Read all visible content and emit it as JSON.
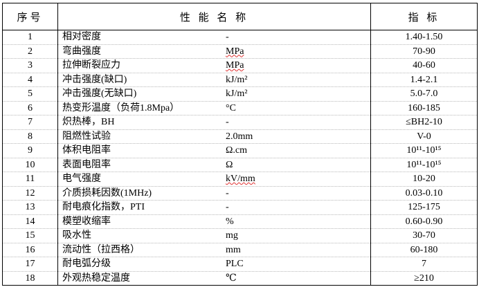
{
  "header": {
    "index": "序号",
    "name": "性 能 名 称",
    "spec": "指 标"
  },
  "rows": [
    {
      "no": "1",
      "name": "相对密度",
      "unit": "-",
      "value": "1.40-1.50"
    },
    {
      "no": "2",
      "name": "弯曲强度",
      "unit": "MPa",
      "value": "70-90",
      "spell_flag": true
    },
    {
      "no": "3",
      "name": "拉伸断裂应力",
      "unit": "MPa",
      "value": "40-60",
      "spell_flag": true
    },
    {
      "no": "4",
      "name": "冲击强度(缺口)",
      "unit": "kJ/m²",
      "value": "1.4-2.1"
    },
    {
      "no": "5",
      "name": "冲击强度(无缺口)",
      "unit": "kJ/m²",
      "value": "5.0-7.0"
    },
    {
      "no": "6",
      "name": "热变形温度（负荷1.8Mpa）",
      "unit": "°C",
      "value": "160-185"
    },
    {
      "no": "7",
      "name": "炽热棒，BH",
      "unit": "-",
      "value": "≤BH2-10"
    },
    {
      "no": "8",
      "name": "阻燃性试验",
      "unit": "2.0mm",
      "value": "V-0"
    },
    {
      "no": "9",
      "name": "体积电阻率",
      "unit": "Ω.cm",
      "value": "10¹¹-10¹⁵"
    },
    {
      "no": "10",
      "name": "表面电阻率",
      "unit": "Ω",
      "value": "10¹¹-10¹⁵"
    },
    {
      "no": "11",
      "name": "电气强度",
      "unit": "kV/mm",
      "value": "10-20",
      "spell_flag": true
    },
    {
      "no": "12",
      "name": "介质损耗因数(1MHz)",
      "unit": "-",
      "value": "0.03-0.10"
    },
    {
      "no": "13",
      "name": "耐电痕化指数，PTI",
      "unit": "-",
      "value": "125-175"
    },
    {
      "no": "14",
      "name": "模塑收缩率",
      "unit": "%",
      "value": "0.60-0.90"
    },
    {
      "no": "15",
      "name": "吸水性",
      "unit": "mg",
      "value": "30-70"
    },
    {
      "no": "16",
      "name": "流动性（拉西格）",
      "unit": "mm",
      "value": "60-180"
    },
    {
      "no": "17",
      "name": "耐电弧分级",
      "unit": "PLC",
      "value": "7"
    },
    {
      "no": "18",
      "name": "外观热稳定温度",
      "unit": "℃",
      "value": "≥210"
    }
  ]
}
